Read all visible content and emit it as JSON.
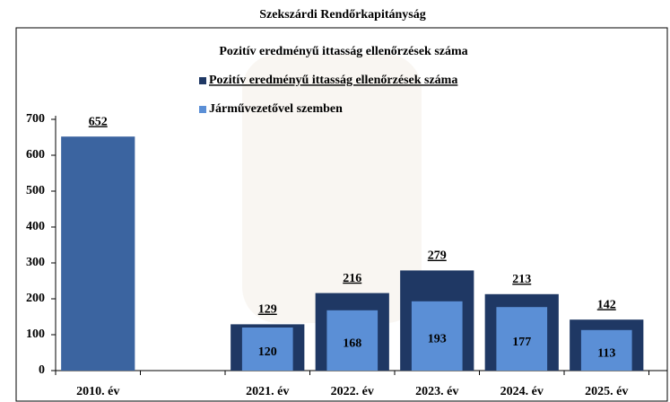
{
  "title": "Szekszárdi Rendőrkapitányság",
  "chart_data": {
    "type": "overlap-bar",
    "title": "Pozitív eredményű ittasság ellenőrzések száma",
    "categories": [
      "2010. év",
      null,
      "2021. év",
      "2022. év",
      "2023. év",
      "2024. év",
      "2025. év"
    ],
    "series": [
      {
        "name": "Pozitív eredményű ittasság ellenőrzések száma",
        "color": "#1f3864",
        "colors": [
          "#3b64a0",
          null,
          "#1f3864",
          "#1f3864",
          "#1f3864",
          "#1f3864",
          "#1f3864"
        ],
        "values": [
          652,
          null,
          129,
          216,
          279,
          213,
          142
        ]
      },
      {
        "name": "Járművezetővel szemben",
        "color": "#5b8fd6",
        "values": [
          null,
          null,
          120,
          168,
          193,
          177,
          113
        ]
      }
    ],
    "ylim": [
      0,
      700
    ],
    "yticks": [
      0,
      100,
      200,
      300,
      400,
      500,
      600,
      700
    ],
    "grid": false,
    "legend": "upper center"
  }
}
